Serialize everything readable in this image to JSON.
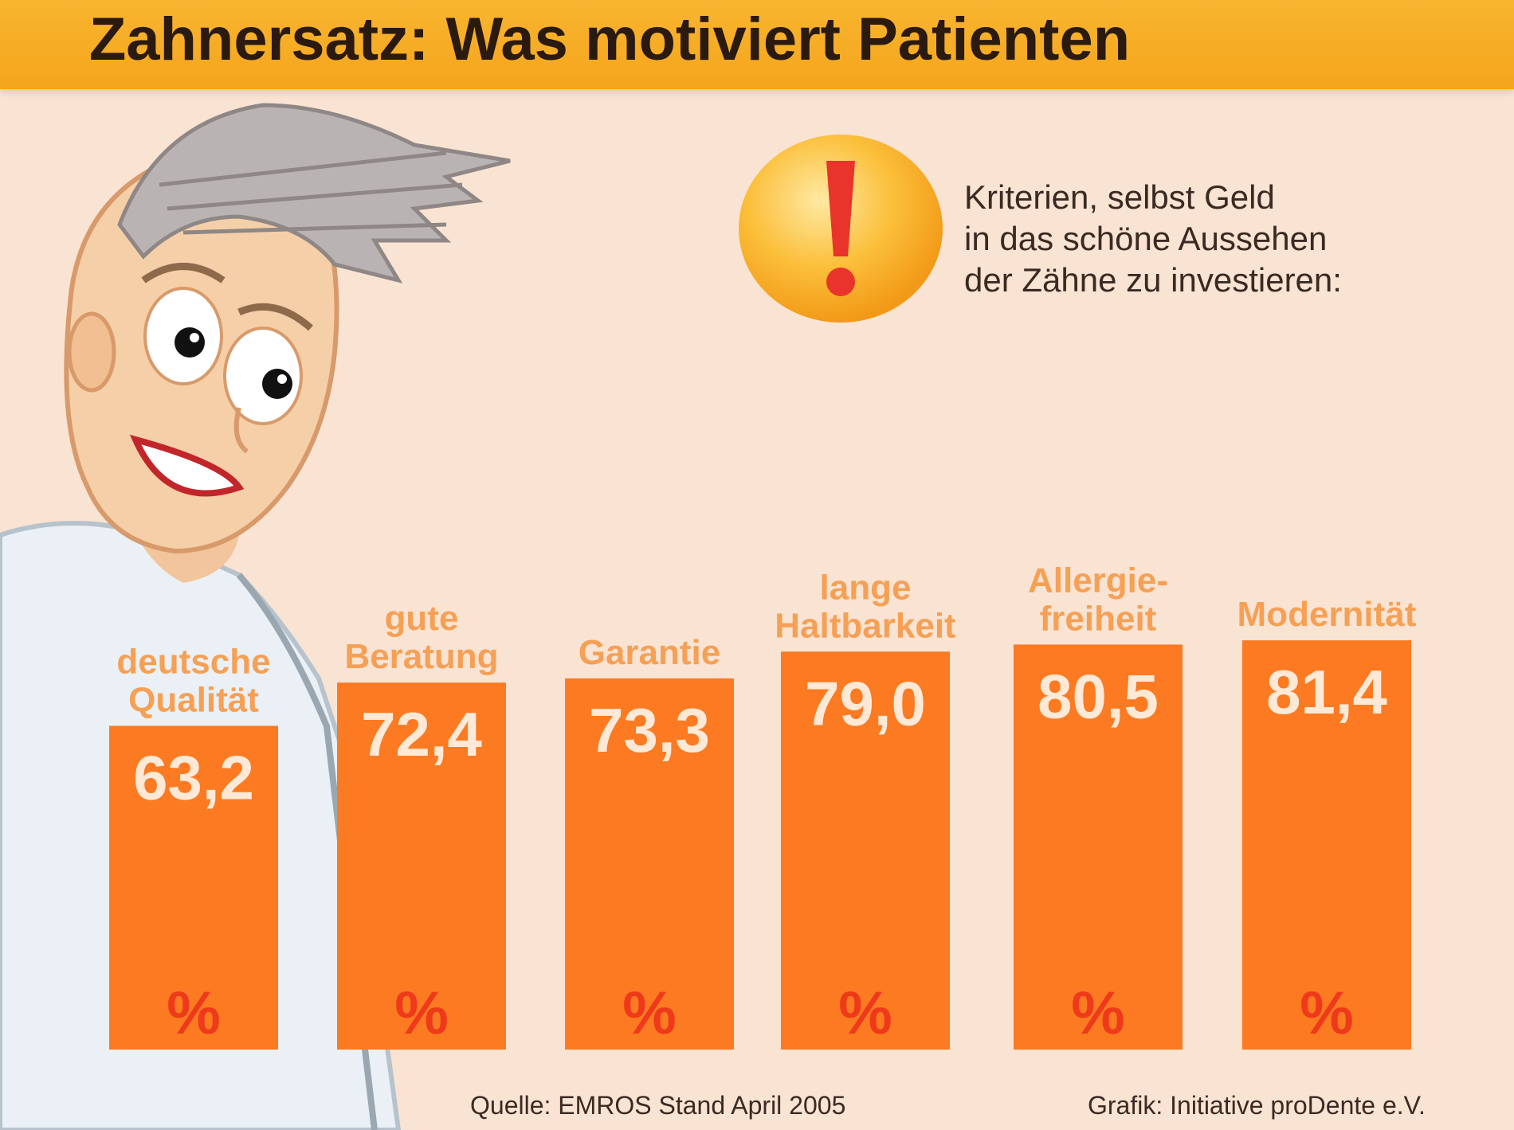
{
  "header": {
    "title": "Zahnersatz: Was motiviert Patienten"
  },
  "info": {
    "icon": "exclamation-icon",
    "lines": [
      "Kriterien, selbst Geld",
      "in das schöne Aussehen",
      "der Zähne zu investieren:"
    ]
  },
  "colors": {
    "bar": "#fb7a22",
    "bar_label": "#f6a055",
    "value_text": "#fde9d6",
    "percent_text": "#ee3a1a",
    "background": "#f9e3d3",
    "header": "#f7ad26"
  },
  "chart_data": {
    "type": "bar",
    "categories": [
      [
        "deutsche",
        "Qualität"
      ],
      [
        "gute",
        "Beratung"
      ],
      [
        "Garantie"
      ],
      [
        "lange",
        "Haltbarkeit"
      ],
      [
        "Allergie-",
        "freiheit"
      ],
      [
        "Modernität"
      ]
    ],
    "values": [
      63.2,
      72.4,
      73.3,
      79.0,
      80.5,
      81.4
    ],
    "value_labels": [
      "63,2",
      "72,4",
      "73,3",
      "79,0",
      "80,5",
      "81,4"
    ],
    "unit": "%",
    "ylabel": "",
    "xlabel": "",
    "grid": false,
    "legend": "none"
  },
  "footer": {
    "source": "Quelle: EMROS Stand April 2005",
    "credit": "Grafik: Initiative proDente e.V."
  }
}
